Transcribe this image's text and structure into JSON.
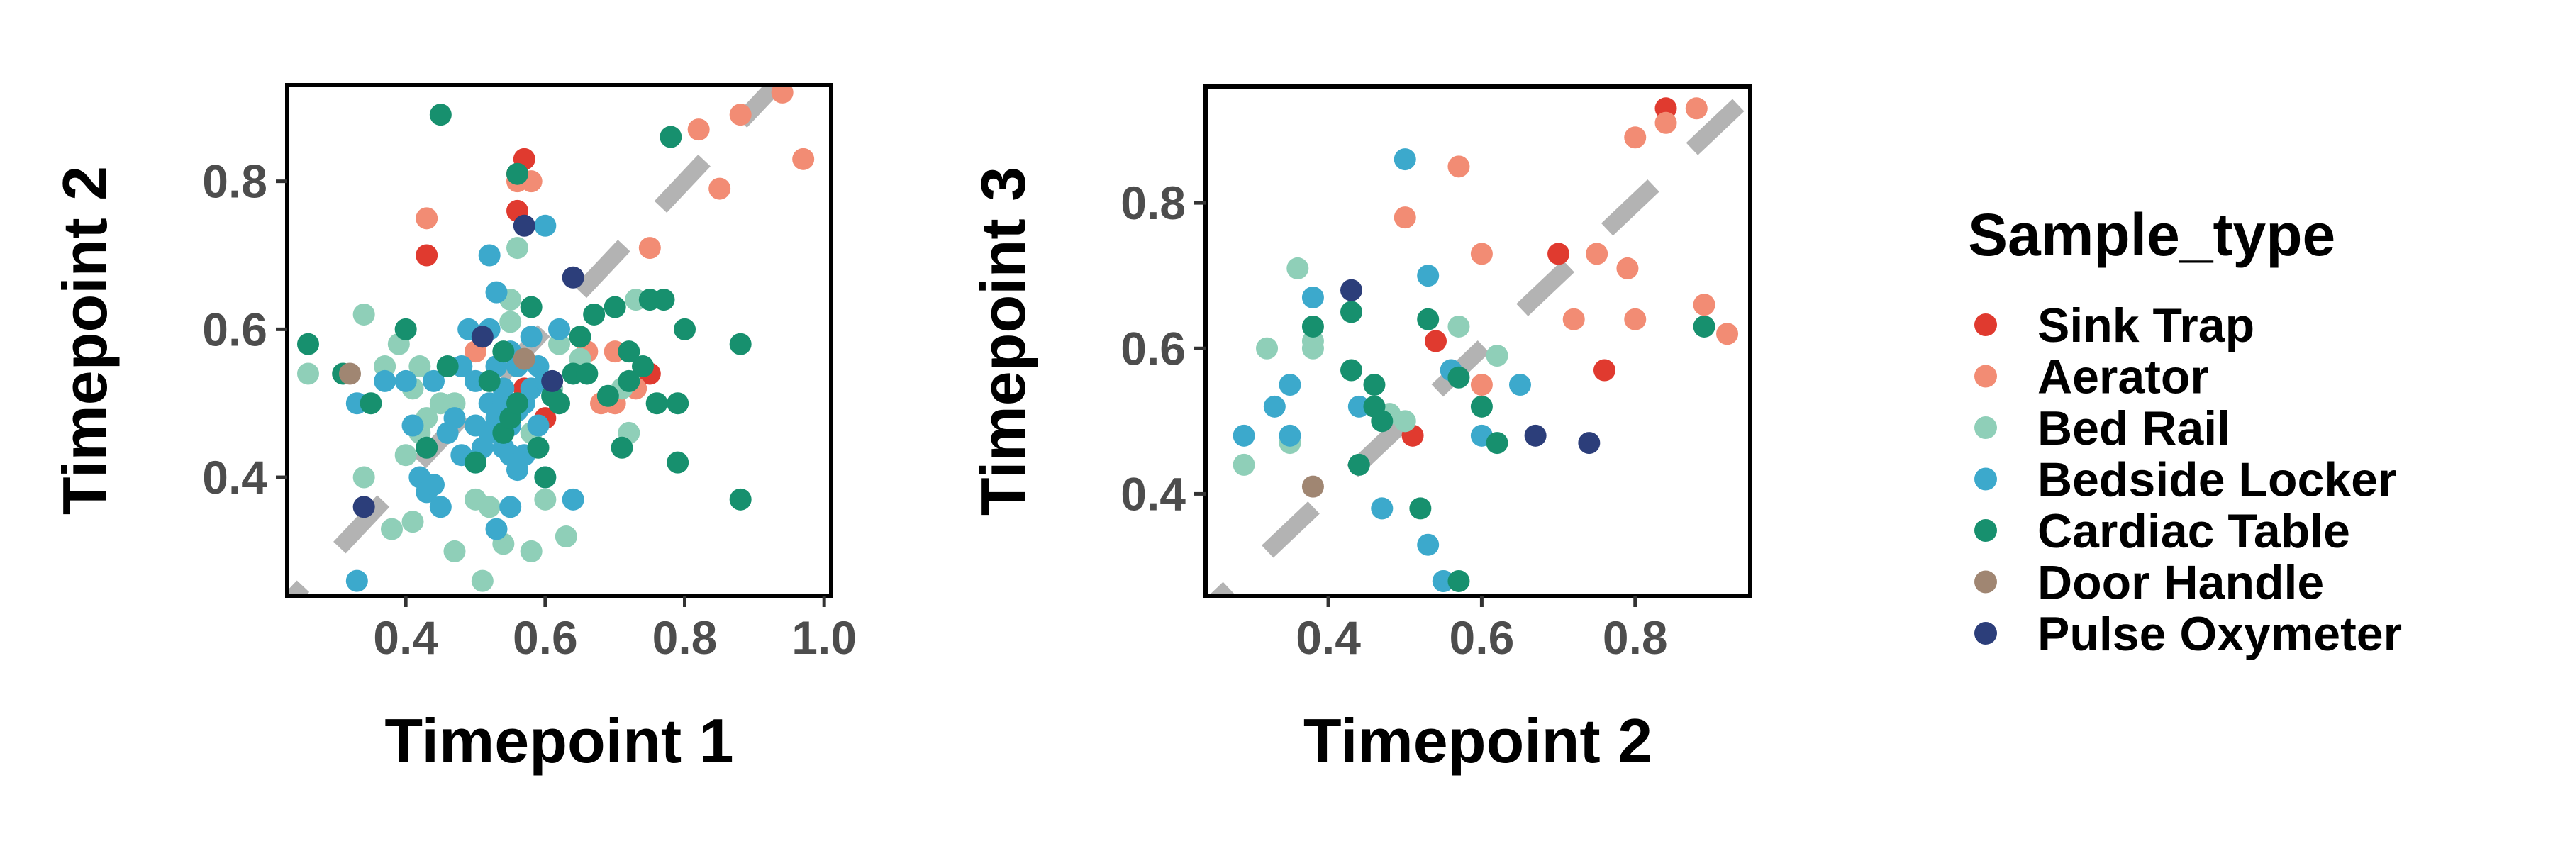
{
  "chart_data": [
    {
      "type": "scatter",
      "xlabel": "Timepoint 1",
      "ylabel": "Timepoint 2",
      "xlim": [
        0.23,
        1.01
      ],
      "ylim": [
        0.24,
        0.93
      ],
      "xticks": [
        {
          "value": 0.4,
          "label": "0.4"
        },
        {
          "value": 0.6,
          "label": "0.6"
        },
        {
          "value": 0.8,
          "label": "0.8"
        },
        {
          "value": 1.0,
          "label": "1.0"
        }
      ],
      "yticks": [
        {
          "value": 0.4,
          "label": "0.4"
        },
        {
          "value": 0.6,
          "label": "0.6"
        },
        {
          "value": 0.8,
          "label": "0.8"
        }
      ],
      "reference_line": {
        "type": "identity",
        "style": "dashed",
        "color": "#b3b3b3"
      },
      "grid": false,
      "series": [
        {
          "name": "Sink Trap",
          "color": "#e03a2f",
          "points": [
            [
              0.57,
              0.83
            ],
            [
              0.56,
              0.81
            ],
            [
              0.43,
              0.7
            ],
            [
              0.56,
              0.76
            ],
            [
              0.75,
              0.54
            ],
            [
              0.6,
              0.48
            ],
            [
              0.57,
              0.52
            ]
          ]
        },
        {
          "name": "Aerator",
          "color": "#f28c74",
          "points": [
            [
              0.94,
              0.92
            ],
            [
              0.97,
              0.83
            ],
            [
              0.88,
              0.89
            ],
            [
              0.82,
              0.87
            ],
            [
              0.85,
              0.79
            ],
            [
              0.75,
              0.71
            ],
            [
              0.43,
              0.75
            ],
            [
              0.58,
              0.8
            ],
            [
              0.56,
              0.8
            ],
            [
              0.7,
              0.57
            ],
            [
              0.68,
              0.5
            ],
            [
              0.7,
              0.5
            ],
            [
              0.73,
              0.52
            ],
            [
              0.66,
              0.57
            ],
            [
              0.5,
              0.57
            ]
          ]
        },
        {
          "name": "Bed Rail",
          "color": "#8fcfb8",
          "points": [
            [
              0.26,
              0.54
            ],
            [
              0.34,
              0.62
            ],
            [
              0.37,
              0.55
            ],
            [
              0.42,
              0.55
            ],
            [
              0.39,
              0.58
            ],
            [
              0.41,
              0.52
            ],
            [
              0.45,
              0.5
            ],
            [
              0.43,
              0.48
            ],
            [
              0.47,
              0.5
            ],
            [
              0.4,
              0.43
            ],
            [
              0.42,
              0.46
            ],
            [
              0.34,
              0.4
            ],
            [
              0.38,
              0.33
            ],
            [
              0.41,
              0.34
            ],
            [
              0.47,
              0.3
            ],
            [
              0.5,
              0.37
            ],
            [
              0.52,
              0.36
            ],
            [
              0.54,
              0.31
            ],
            [
              0.58,
              0.3
            ],
            [
              0.6,
              0.37
            ],
            [
              0.63,
              0.32
            ],
            [
              0.56,
              0.71
            ],
            [
              0.55,
              0.64
            ],
            [
              0.55,
              0.61
            ],
            [
              0.58,
              0.46
            ],
            [
              0.61,
              0.52
            ],
            [
              0.62,
              0.58
            ],
            [
              0.65,
              0.56
            ],
            [
              0.71,
              0.52
            ],
            [
              0.72,
              0.46
            ],
            [
              0.73,
              0.64
            ],
            [
              0.51,
              0.26
            ]
          ]
        },
        {
          "name": "Bedside Locker",
          "color": "#3ca9cc",
          "points": [
            [
              0.33,
              0.26
            ],
            [
              0.33,
              0.5
            ],
            [
              0.37,
              0.53
            ],
            [
              0.4,
              0.53
            ],
            [
              0.41,
              0.47
            ],
            [
              0.42,
              0.4
            ],
            [
              0.43,
              0.38
            ],
            [
              0.45,
              0.36
            ],
            [
              0.44,
              0.39
            ],
            [
              0.44,
              0.53
            ],
            [
              0.46,
              0.46
            ],
            [
              0.47,
              0.48
            ],
            [
              0.48,
              0.43
            ],
            [
              0.48,
              0.55
            ],
            [
              0.49,
              0.6
            ],
            [
              0.5,
              0.53
            ],
            [
              0.5,
              0.47
            ],
            [
              0.5,
              0.42
            ],
            [
              0.51,
              0.44
            ],
            [
              0.52,
              0.6
            ],
            [
              0.52,
              0.5
            ],
            [
              0.52,
              0.46
            ],
            [
              0.53,
              0.48
            ],
            [
              0.53,
              0.55
            ],
            [
              0.53,
              0.65
            ],
            [
              0.54,
              0.5
            ],
            [
              0.54,
              0.52
            ],
            [
              0.54,
              0.44
            ],
            [
              0.55,
              0.47
            ],
            [
              0.55,
              0.43
            ],
            [
              0.55,
              0.57
            ],
            [
              0.56,
              0.55
            ],
            [
              0.56,
              0.49
            ],
            [
              0.56,
              0.41
            ],
            [
              0.57,
              0.43
            ],
            [
              0.57,
              0.5
            ],
            [
              0.58,
              0.59
            ],
            [
              0.58,
              0.52
            ],
            [
              0.59,
              0.47
            ],
            [
              0.59,
              0.55
            ],
            [
              0.6,
              0.74
            ],
            [
              0.6,
              0.53
            ],
            [
              0.62,
              0.6
            ],
            [
              0.64,
              0.37
            ],
            [
              0.6,
              0.4
            ],
            [
              0.55,
              0.36
            ],
            [
              0.52,
              0.7
            ],
            [
              0.61,
              0.51
            ],
            [
              0.53,
              0.33
            ]
          ]
        },
        {
          "name": "Cardiac Table",
          "color": "#17906e",
          "points": [
            [
              0.26,
              0.58
            ],
            [
              0.31,
              0.54
            ],
            [
              0.35,
              0.5
            ],
            [
              0.45,
              0.89
            ],
            [
              0.56,
              0.81
            ],
            [
              0.78,
              0.86
            ],
            [
              0.4,
              0.6
            ],
            [
              0.43,
              0.44
            ],
            [
              0.46,
              0.55
            ],
            [
              0.5,
              0.42
            ],
            [
              0.52,
              0.53
            ],
            [
              0.54,
              0.46
            ],
            [
              0.55,
              0.48
            ],
            [
              0.56,
              0.5
            ],
            [
              0.58,
              0.63
            ],
            [
              0.59,
              0.44
            ],
            [
              0.6,
              0.4
            ],
            [
              0.61,
              0.51
            ],
            [
              0.62,
              0.5
            ],
            [
              0.64,
              0.54
            ],
            [
              0.65,
              0.59
            ],
            [
              0.66,
              0.54
            ],
            [
              0.67,
              0.62
            ],
            [
              0.69,
              0.51
            ],
            [
              0.7,
              0.63
            ],
            [
              0.71,
              0.44
            ],
            [
              0.72,
              0.57
            ],
            [
              0.72,
              0.53
            ],
            [
              0.74,
              0.55
            ],
            [
              0.75,
              0.64
            ],
            [
              0.76,
              0.5
            ],
            [
              0.77,
              0.64
            ],
            [
              0.79,
              0.5
            ],
            [
              0.8,
              0.6
            ],
            [
              0.79,
              0.42
            ],
            [
              0.88,
              0.58
            ],
            [
              0.88,
              0.37
            ],
            [
              0.54,
              0.57
            ]
          ]
        },
        {
          "name": "Door Handle",
          "color": "#a08672",
          "points": [
            [
              0.32,
              0.54
            ],
            [
              0.57,
              0.56
            ]
          ]
        },
        {
          "name": "Pulse Oxymeter",
          "color": "#2c3e7a",
          "points": [
            [
              0.34,
              0.36
            ],
            [
              0.57,
              0.74
            ],
            [
              0.64,
              0.67
            ],
            [
              0.61,
              0.53
            ],
            [
              0.51,
              0.59
            ]
          ]
        }
      ]
    },
    {
      "type": "scatter",
      "xlabel": "Timepoint 2",
      "ylabel": "Timepoint 3",
      "xlim": [
        0.24,
        0.95
      ],
      "ylim": [
        0.26,
        0.96
      ],
      "xticks": [
        {
          "value": 0.4,
          "label": "0.4"
        },
        {
          "value": 0.6,
          "label": "0.6"
        },
        {
          "value": 0.8,
          "label": "0.8"
        }
      ],
      "yticks": [
        {
          "value": 0.4,
          "label": "0.4"
        },
        {
          "value": 0.6,
          "label": "0.6"
        },
        {
          "value": 0.8,
          "label": "0.8"
        }
      ],
      "reference_line": {
        "type": "identity",
        "style": "dashed",
        "color": "#b3b3b3"
      },
      "grid": false,
      "series": [
        {
          "name": "Sink Trap",
          "color": "#e03a2f",
          "points": [
            [
              0.84,
              0.93
            ],
            [
              0.7,
              0.73
            ],
            [
              0.76,
              0.57
            ],
            [
              0.54,
              0.61
            ],
            [
              0.51,
              0.48
            ]
          ]
        },
        {
          "name": "Aerator",
          "color": "#f28c74",
          "points": [
            [
              0.88,
              0.93
            ],
            [
              0.84,
              0.91
            ],
            [
              0.8,
              0.89
            ],
            [
              0.57,
              0.85
            ],
            [
              0.5,
              0.78
            ],
            [
              0.6,
              0.73
            ],
            [
              0.75,
              0.73
            ],
            [
              0.79,
              0.71
            ],
            [
              0.72,
              0.64
            ],
            [
              0.8,
              0.64
            ],
            [
              0.89,
              0.66
            ],
            [
              0.92,
              0.62
            ],
            [
              0.6,
              0.55
            ]
          ]
        },
        {
          "name": "Bed Rail",
          "color": "#8fcfb8",
          "points": [
            [
              0.36,
              0.71
            ],
            [
              0.32,
              0.6
            ],
            [
              0.38,
              0.6
            ],
            [
              0.38,
              0.61
            ],
            [
              0.29,
              0.44
            ],
            [
              0.35,
              0.47
            ],
            [
              0.48,
              0.51
            ],
            [
              0.5,
              0.5
            ],
            [
              0.57,
              0.63
            ],
            [
              0.62,
              0.59
            ],
            [
              0.55,
              0.28
            ],
            [
              0.47,
              0.38
            ]
          ]
        },
        {
          "name": "Bedside Locker",
          "color": "#3ca9cc",
          "points": [
            [
              0.5,
              0.86
            ],
            [
              0.53,
              0.7
            ],
            [
              0.38,
              0.67
            ],
            [
              0.35,
              0.55
            ],
            [
              0.33,
              0.52
            ],
            [
              0.29,
              0.48
            ],
            [
              0.35,
              0.48
            ],
            [
              0.44,
              0.52
            ],
            [
              0.47,
              0.38
            ],
            [
              0.53,
              0.33
            ],
            [
              0.56,
              0.57
            ],
            [
              0.6,
              0.48
            ],
            [
              0.65,
              0.55
            ],
            [
              0.55,
              0.28
            ]
          ]
        },
        {
          "name": "Cardiac Table",
          "color": "#17906e",
          "points": [
            [
              0.38,
              0.63
            ],
            [
              0.43,
              0.65
            ],
            [
              0.43,
              0.57
            ],
            [
              0.46,
              0.55
            ],
            [
              0.46,
              0.52
            ],
            [
              0.47,
              0.5
            ],
            [
              0.53,
              0.64
            ],
            [
              0.57,
              0.56
            ],
            [
              0.6,
              0.52
            ],
            [
              0.62,
              0.47
            ],
            [
              0.44,
              0.44
            ],
            [
              0.52,
              0.38
            ],
            [
              0.57,
              0.28
            ],
            [
              0.89,
              0.63
            ]
          ]
        },
        {
          "name": "Door Handle",
          "color": "#a08672",
          "points": [
            [
              0.38,
              0.41
            ]
          ]
        },
        {
          "name": "Pulse Oxymeter",
          "color": "#2c3e7a",
          "points": [
            [
              0.43,
              0.68
            ],
            [
              0.67,
              0.48
            ],
            [
              0.74,
              0.47
            ]
          ]
        }
      ]
    }
  ],
  "legend": {
    "title": "Sample_type",
    "items": [
      {
        "label": "Sink Trap",
        "color": "#e03a2f"
      },
      {
        "label": "Aerator",
        "color": "#f28c74"
      },
      {
        "label": "Bed Rail",
        "color": "#8fcfb8"
      },
      {
        "label": "Bedside Locker",
        "color": "#3ca9cc"
      },
      {
        "label": "Cardiac Table",
        "color": "#17906e"
      },
      {
        "label": "Door Handle",
        "color": "#a08672"
      },
      {
        "label": "Pulse Oxymeter",
        "color": "#2c3e7a"
      }
    ]
  }
}
